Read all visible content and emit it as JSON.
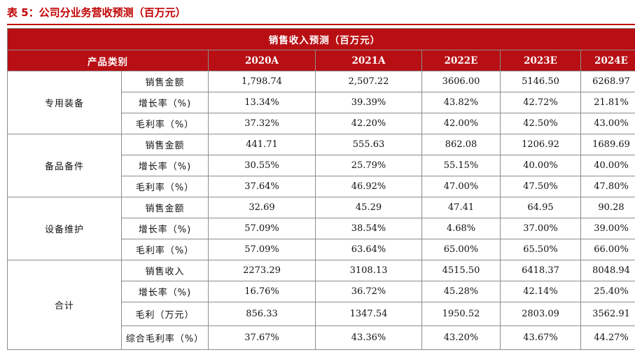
{
  "caption": "表 5：公司分业务营收预测（百万元）",
  "table": {
    "title": "销售收入预测（百万元）",
    "category_header": "产品类别",
    "years": [
      "2020A",
      "2021A",
      "2022E",
      "2023E",
      "2024E"
    ],
    "segments": [
      {
        "name": "专用装备",
        "rows": [
          {
            "metric": "销售金额",
            "values": [
              "1,798.74",
              "2,507.22",
              "3606.00",
              "5146.50",
              "6268.97"
            ]
          },
          {
            "metric": "增长率（%)",
            "values": [
              "13.34%",
              "39.39%",
              "43.82%",
              "42.72%",
              "21.81%"
            ]
          },
          {
            "metric": "毛利率（%）",
            "values": [
              "37.32%",
              "42.20%",
              "42.00%",
              "42.50%",
              "43.00%"
            ]
          }
        ]
      },
      {
        "name": "备品备件",
        "rows": [
          {
            "metric": "销售金额",
            "values": [
              "441.71",
              "555.63",
              "862.08",
              "1206.92",
              "1689.69"
            ]
          },
          {
            "metric": "增长率（%)",
            "values": [
              "30.55%",
              "25.79%",
              "55.15%",
              "40.00%",
              "40.00%"
            ]
          },
          {
            "metric": "毛利率（%）",
            "values": [
              "37.64%",
              "46.92%",
              "47.00%",
              "47.50%",
              "47.80%"
            ]
          }
        ]
      },
      {
        "name": "设备维护",
        "rows": [
          {
            "metric": "销售金额",
            "values": [
              "32.69",
              "45.29",
              "47.41",
              "64.95",
              "90.28"
            ]
          },
          {
            "metric": "增长率（%)",
            "values": [
              "57.09%",
              "38.54%",
              "4.68%",
              "37.00%",
              "39.00%"
            ]
          },
          {
            "metric": "毛利率（%）",
            "values": [
              "57.09%",
              "63.64%",
              "65.00%",
              "65.50%",
              "66.00%"
            ]
          }
        ]
      },
      {
        "name": "合计",
        "rows": [
          {
            "metric": "销售收入",
            "values": [
              "2273.29",
              "3108.13",
              "4515.50",
              "6418.37",
              "8048.94"
            ]
          },
          {
            "metric": "增长率（%)",
            "values": [
              "16.76%",
              "36.72%",
              "45.28%",
              "42.14%",
              "25.40%"
            ]
          },
          {
            "metric": "毛利（万元）",
            "values": [
              "856.33",
              "1347.54",
              "1950.52",
              "2803.09",
              "3562.91"
            ]
          },
          {
            "metric": "综合毛利率（%）",
            "values": [
              "37.67%",
              "43.36%",
              "43.20%",
              "43.67%",
              "44.27%"
            ]
          }
        ]
      }
    ]
  },
  "colors": {
    "header_bg": "#b80f14",
    "caption": "#c00000"
  }
}
